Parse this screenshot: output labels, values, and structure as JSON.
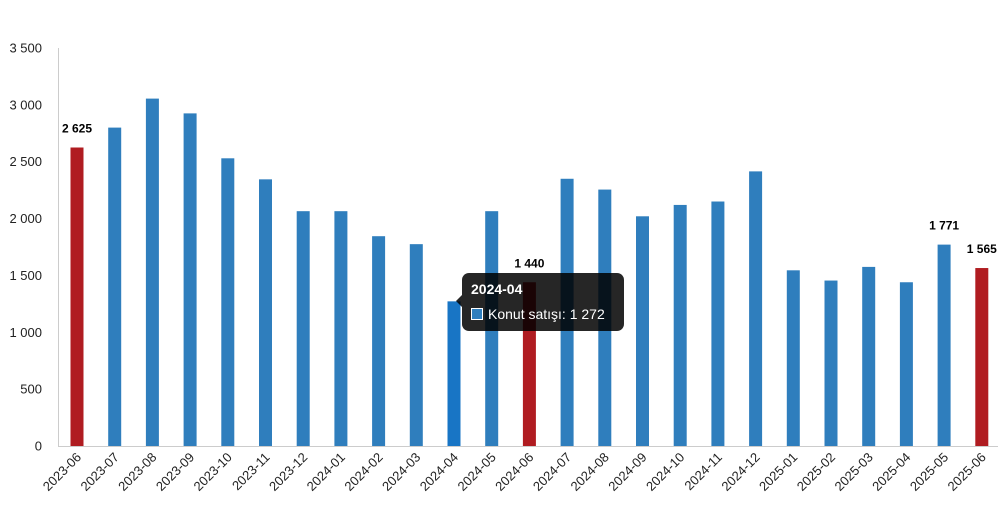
{
  "chart_data": {
    "type": "bar",
    "categories": [
      "2023-06",
      "2023-07",
      "2023-08",
      "2023-09",
      "2023-10",
      "2023-11",
      "2023-12",
      "2024-01",
      "2024-02",
      "2024-03",
      "2024-04",
      "2024-05",
      "2024-06",
      "2024-07",
      "2024-08",
      "2024-09",
      "2024-10",
      "2024-11",
      "2024-12",
      "2025-01",
      "2025-02",
      "2025-03",
      "2025-04",
      "2025-05",
      "2025-06"
    ],
    "series": [
      {
        "name": "Konut satışı",
        "values": [
          2625,
          2800,
          3055,
          2925,
          2530,
          2345,
          2065,
          2065,
          1845,
          1775,
          1272,
          2065,
          1440,
          2350,
          2255,
          2020,
          2120,
          2150,
          2415,
          1545,
          1455,
          1575,
          1440,
          1771,
          1565
        ]
      }
    ],
    "y_ticks": [
      "0",
      "500",
      "1 000",
      "1 500",
      "2 000",
      "2 500",
      "3 000",
      "3 500"
    ],
    "ylim": [
      0,
      3500
    ],
    "grid": false,
    "highlighted_categories": [
      "2023-06",
      "2024-06",
      "2025-06"
    ],
    "hovered_category": "2024-04",
    "data_labels": [
      {
        "category": "2023-06",
        "text": "2 625"
      },
      {
        "category": "2024-06",
        "text": "1 440"
      },
      {
        "category": "2025-05",
        "text": "1 771"
      },
      {
        "category": "2025-06",
        "text": "1 565"
      }
    ],
    "colors": {
      "bar": "#2f7ebd",
      "highlight": "#b01c21",
      "hover": "#1875c5",
      "axis": "#cccccc"
    },
    "tooltip": {
      "title": "2024-04",
      "label": "Konut satışı: 1 272"
    }
  }
}
